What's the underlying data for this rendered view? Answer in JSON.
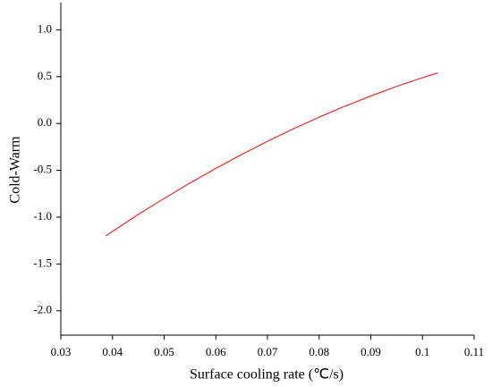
{
  "chart_data": {
    "type": "line",
    "xlabel": "Surface cooling rate (℃/s)",
    "ylabel": "Cold-Warm",
    "xlim": [
      0.03,
      0.11
    ],
    "xticks": [
      0.03,
      0.04,
      0.05,
      0.06,
      0.07,
      0.08,
      0.09,
      0.1,
      0.11
    ],
    "ylim": [
      -2.26,
      1.29
    ],
    "yticks": [
      {
        "value": -2,
        "label": "-2.0"
      },
      -1.5,
      {
        "value": -1,
        "label": "-1.0"
      },
      -0.5,
      {
        "value": 0,
        "label": "0.0"
      },
      0.5,
      {
        "value": 1,
        "label": "1.0"
      }
    ],
    "series": [
      {
        "color": "#ff0000",
        "x": [
          0.0387,
          0.045,
          0.05,
          0.055,
          0.06,
          0.065,
          0.07,
          0.075,
          0.08,
          0.085,
          0.09,
          0.095,
          0.1,
          0.1029
        ],
        "values": [
          -1.2,
          -0.97,
          -0.8,
          -0.635,
          -0.48,
          -0.33,
          -0.19,
          -0.057,
          0.068,
          0.185,
          0.294,
          0.396,
          0.489,
          0.54
        ]
      }
    ]
  }
}
